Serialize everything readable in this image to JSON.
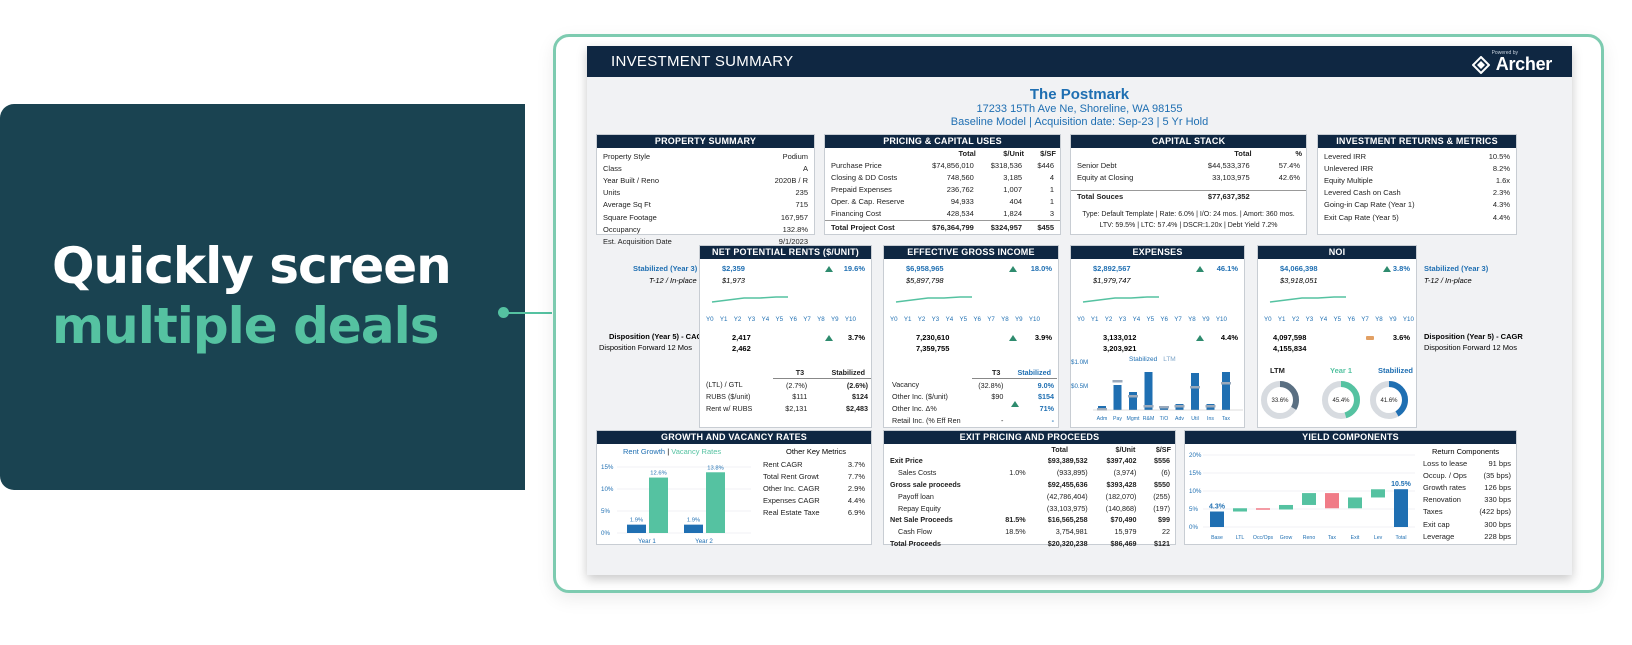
{
  "promo": {
    "line1": "Quickly screen",
    "line2": "multiple deals"
  },
  "header": {
    "title": "INVESTMENT SUMMARY",
    "powered_by": "Powered by",
    "brand": "Archer"
  },
  "property": {
    "name": "The Postmark",
    "address": "17233 15Th Ave Ne, Shoreline, WA 98155",
    "model_line": "Baseline Model  |  Acquisition date: Sep-23  |  5 Yr Hold"
  },
  "property_summary": {
    "title": "PROPERTY SUMMARY",
    "rows": [
      {
        "label": "Property Style",
        "value": "Podium"
      },
      {
        "label": "Class",
        "value": "A"
      },
      {
        "label": "Year Built / Reno",
        "value": "2020B / R"
      },
      {
        "label": "Units",
        "value": "235"
      },
      {
        "label": "Average Sq Ft",
        "value": "715"
      },
      {
        "label": "Square Footage",
        "value": "167,957"
      },
      {
        "label": "Occupancy",
        "value": "132.8%"
      },
      {
        "label": "Est. Acquisition Date",
        "value": "9/1/2023"
      }
    ]
  },
  "pricing": {
    "title": "PRICING & CAPITAL USES",
    "headers": [
      "Total",
      "$/Unit",
      "$/SF"
    ],
    "rows": [
      {
        "label": "Purchase Price",
        "total": "$74,856,010",
        "unit": "$318,536",
        "sf": "$446"
      },
      {
        "label": "Closing & DD Costs",
        "total": "748,560",
        "unit": "3,185",
        "sf": "4"
      },
      {
        "label": "Prepaid Expenses",
        "total": "236,762",
        "unit": "1,007",
        "sf": "1"
      },
      {
        "label": "Oper. & Cap. Reserve",
        "total": "94,933",
        "unit": "404",
        "sf": "1"
      },
      {
        "label": "Financing Cost",
        "total": "428,534",
        "unit": "1,824",
        "sf": "3"
      }
    ],
    "total": {
      "label": "Total Project Cost",
      "total": "$76,364,799",
      "unit": "$324,957",
      "sf": "$455"
    }
  },
  "capital_stack": {
    "title": "CAPITAL STACK",
    "headers": [
      "Total",
      "%"
    ],
    "rows": [
      {
        "label": "Senior Debt",
        "total": "$44,533,376",
        "pct": "57.4%"
      },
      {
        "label": "Equity at Closing",
        "total": "33,103,975",
        "pct": "42.6%"
      }
    ],
    "total": {
      "label": "Total Souces",
      "total": "$77,637,352"
    },
    "note1": "Type: Default Template | Rate: 6.0% | I/O: 24 mos. | Amort: 360 mos.",
    "note2": "LTV: 59.5% | LTC: 57.4% | DSCR:1.20x | Debt Yield 7.2%"
  },
  "returns": {
    "title": "INVESTMENT RETURNS & METRICS",
    "rows": [
      {
        "label": "Levered IRR",
        "value": "10.5%"
      },
      {
        "label": "Unlevered IRR",
        "value": "8.2%"
      },
      {
        "label": "Equity Multiple",
        "value": "1.6x"
      },
      {
        "label": "Levered Cash on Cash",
        "value": "2.3%"
      },
      {
        "label": "Going-in Cap Rate (Year 1)",
        "value": "4.3%"
      },
      {
        "label": "Exit Cap Rate (Year 5)",
        "value": "4.4%"
      }
    ]
  },
  "side_labels": {
    "stabilized": "Stabilized (Year 3)",
    "t12": "T-12 / In-place",
    "disposition": "Disposition (Year 5) - CAGR",
    "disposition_fwd": "Disposition Forward 12 Mos"
  },
  "year_labels": [
    "Y0",
    "Y1",
    "Y2",
    "Y3",
    "Y4",
    "Y5",
    "Y6",
    "Y7",
    "Y8",
    "Y9",
    "Y10"
  ],
  "metrics": {
    "rents": {
      "title": "NET POTENTIAL RENTS ($/UNIT)",
      "stabilized": "$2,359",
      "t12": "$1,973",
      "growth": "19.6%",
      "disp": "2,417",
      "disp_cagr": "3.7%",
      "fwd": "2,462"
    },
    "egi": {
      "title": "EFFECTIVE GROSS INCOME",
      "stabilized": "$6,958,965",
      "t12": "$5,897,798",
      "growth": "18.0%",
      "disp": "7,230,610",
      "disp_cagr": "3.9%",
      "fwd": "7,359,755"
    },
    "expenses": {
      "title": "EXPENSES",
      "stabilized": "$2,892,567",
      "t12": "$1,979,747",
      "growth": "46.1%",
      "disp": "3,133,012",
      "disp_cagr": "4.4%",
      "fwd": "3,203,921"
    },
    "noi": {
      "title": "NOI",
      "stabilized": "$4,066,398",
      "t12": "$3,918,051",
      "growth": "3.8%",
      "disp": "4,097,598",
      "disp_cagr": "3.6%",
      "fwd": "4,155,834"
    }
  },
  "rents_detail": {
    "headers": [
      "T3",
      "Stabilized"
    ],
    "rows": [
      {
        "label": "(LTL) / GTL",
        "t3": "(2.7%)",
        "stab": "(2.6%)"
      },
      {
        "label": "RUBS ($/unit)",
        "t3": "$111",
        "stab": "$124"
      },
      {
        "label": "Rent w/ RUBS",
        "t3": "$2,131",
        "stab": "$2,483"
      }
    ]
  },
  "egi_detail": {
    "headers": [
      "T3",
      "Stabilized"
    ],
    "rows": [
      {
        "label": "Vacancy",
        "t3": "(32.8%)",
        "stab": "9.0%"
      },
      {
        "label": "Other Inc. ($/unit)",
        "t3": "$90",
        "stab": "$154"
      },
      {
        "label": "Other Inc. Δ%",
        "t3": "",
        "stab": "71%"
      },
      {
        "label": "Retail Inc. (% Eff Ren",
        "t3": "-",
        "stab": "-"
      }
    ]
  },
  "expenses_chart": {
    "legend_stab": "Stabilized",
    "legend_ltm": "LTM",
    "y_labels": [
      "$1.0M",
      "$0.5M"
    ],
    "categories": [
      "Adm",
      "Pay",
      "Mgmt",
      "R&M",
      "T/O",
      "Adv",
      "Util",
      "Ins",
      "Tax"
    ]
  },
  "noi_detail": {
    "ltm": "LTM",
    "year1": "Year 1",
    "stabilized": "Stabilized",
    "ltm_pct": "33.6%",
    "y1_pct": "45.4%",
    "stab_pct": "41.6%"
  },
  "growth": {
    "title": "GROWTH AND VACANCY RATES",
    "legend_rent": "Rent Growth",
    "legend_sep": "|",
    "legend_vac": "Vacancy Rates",
    "y_labels": [
      "15%",
      "10%",
      "5%",
      "0%"
    ],
    "bar_labels": [
      "1.9%",
      "12.6%",
      "1.9%",
      "13.8%"
    ],
    "x_labels": [
      "Year 1",
      "Year 2"
    ],
    "other_title": "Other Key Metrics",
    "other": [
      {
        "label": "Rent CAGR",
        "value": "3.7%"
      },
      {
        "label": "Total Rent Growt",
        "value": "7.7%"
      },
      {
        "label": "Other Inc. CAGR",
        "value": "2.9%"
      },
      {
        "label": "Expenses CAGR",
        "value": "4.4%"
      },
      {
        "label": "Real Estate Taxe",
        "value": "6.9%"
      }
    ]
  },
  "exit": {
    "title": "EXIT PRICING AND PROCEEDS",
    "headers": [
      "Total",
      "$/Unit",
      "$/SF"
    ],
    "rows": [
      {
        "label": "Exit Price",
        "pct": "",
        "total": "$93,389,532",
        "unit": "$397,402",
        "sf": "$556",
        "bold": true
      },
      {
        "label": "Sales Costs",
        "pct": "1.0%",
        "total": "(933,895)",
        "unit": "(3,974)",
        "sf": "(6)",
        "bold": false
      },
      {
        "label": "Gross sale proceeds",
        "pct": "",
        "total": "$92,455,636",
        "unit": "$393,428",
        "sf": "$550",
        "bold": true
      },
      {
        "label": "Payoff loan",
        "pct": "",
        "total": "(42,786,404)",
        "unit": "(182,070)",
        "sf": "(255)",
        "bold": false
      },
      {
        "label": "Repay Equity",
        "pct": "",
        "total": "(33,103,975)",
        "unit": "(140,868)",
        "sf": "(197)",
        "bold": false
      },
      {
        "label": "Net Sale Proceeds",
        "pct": "81.5%",
        "total": "$16,565,258",
        "unit": "$70,490",
        "sf": "$99",
        "bold": true
      },
      {
        "label": "Cash Flow",
        "pct": "18.5%",
        "total": "3,754,981",
        "unit": "15,979",
        "sf": "22",
        "bold": false
      },
      {
        "label": "Total Proceeds",
        "pct": "",
        "total": "$20,320,238",
        "unit": "$86,469",
        "sf": "$121",
        "bold": true
      }
    ]
  },
  "yield": {
    "title": "YIELD COMPONENTS",
    "y_labels": [
      "20%",
      "15%",
      "10%",
      "5%",
      "0%"
    ],
    "categories": [
      "Base",
      "LTL",
      "Occ/Ops",
      "Grow",
      "Reno",
      "Tax",
      "Exit",
      "Lev",
      "Total"
    ],
    "base_label": "4.3%",
    "total_label": "10.5%",
    "return_title": "Return Components",
    "components": [
      {
        "label": "Loss to lease",
        "value": "91 bps"
      },
      {
        "label": "Occup. / Ops",
        "value": "(35 bps)"
      },
      {
        "label": "Growth rates",
        "value": "126 bps"
      },
      {
        "label": "Renovation",
        "value": "330 bps"
      },
      {
        "label": "Taxes",
        "value": "(422 bps)"
      },
      {
        "label": "Exit cap",
        "value": "300 bps"
      },
      {
        "label": "Leverage",
        "value": "228 bps"
      }
    ]
  },
  "colors": {
    "navy": "#0f2742",
    "teal": "#1a4351",
    "mint": "#55c2a1",
    "blue": "#1f6fb2"
  }
}
